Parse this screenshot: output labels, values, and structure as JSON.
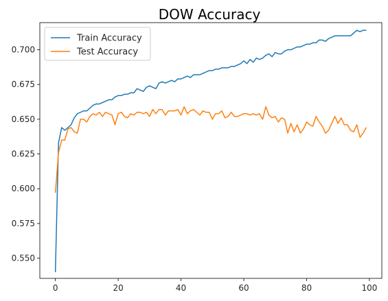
{
  "chart_data": {
    "type": "line",
    "title": "DOW Accuracy",
    "xlabel": "",
    "ylabel": "",
    "xlim": [
      -4.95,
      103.95
    ],
    "ylim": [
      0.5355,
      0.7195
    ],
    "x_ticks": [
      0,
      20,
      40,
      60,
      80,
      100
    ],
    "y_ticks": [
      0.55,
      0.575,
      0.6,
      0.625,
      0.65,
      0.675,
      0.7
    ],
    "y_tick_labels": [
      "0.550",
      "0.575",
      "0.600",
      "0.625",
      "0.650",
      "0.675",
      "0.700"
    ],
    "grid": false,
    "legend_position": "upper-left",
    "x": [
      0,
      1,
      2,
      3,
      4,
      5,
      6,
      7,
      8,
      9,
      10,
      11,
      12,
      13,
      14,
      15,
      16,
      17,
      18,
      19,
      20,
      21,
      22,
      23,
      24,
      25,
      26,
      27,
      28,
      29,
      30,
      31,
      32,
      33,
      34,
      35,
      36,
      37,
      38,
      39,
      40,
      41,
      42,
      43,
      44,
      45,
      46,
      47,
      48,
      49,
      50,
      51,
      52,
      53,
      54,
      55,
      56,
      57,
      58,
      59,
      60,
      61,
      62,
      63,
      64,
      65,
      66,
      67,
      68,
      69,
      70,
      71,
      72,
      73,
      74,
      75,
      76,
      77,
      78,
      79,
      80,
      81,
      82,
      83,
      84,
      85,
      86,
      87,
      88,
      89,
      90,
      91,
      92,
      93,
      94,
      95,
      96,
      97,
      98,
      99
    ],
    "series": [
      {
        "name": "Train Accuracy",
        "color": "#1f77b4",
        "values": [
          0.54,
          0.633,
          0.644,
          0.642,
          0.644,
          0.646,
          0.651,
          0.654,
          0.655,
          0.656,
          0.656,
          0.658,
          0.66,
          0.661,
          0.661,
          0.662,
          0.663,
          0.664,
          0.664,
          0.666,
          0.667,
          0.667,
          0.668,
          0.668,
          0.669,
          0.669,
          0.672,
          0.671,
          0.67,
          0.673,
          0.674,
          0.673,
          0.672,
          0.676,
          0.677,
          0.676,
          0.677,
          0.678,
          0.677,
          0.679,
          0.679,
          0.68,
          0.681,
          0.68,
          0.682,
          0.682,
          0.682,
          0.683,
          0.684,
          0.685,
          0.685,
          0.686,
          0.686,
          0.687,
          0.687,
          0.687,
          0.688,
          0.688,
          0.689,
          0.69,
          0.692,
          0.69,
          0.693,
          0.691,
          0.694,
          0.693,
          0.694,
          0.696,
          0.697,
          0.695,
          0.698,
          0.697,
          0.697,
          0.699,
          0.7,
          0.7,
          0.701,
          0.702,
          0.702,
          0.703,
          0.704,
          0.704,
          0.705,
          0.705,
          0.707,
          0.707,
          0.706,
          0.708,
          0.709,
          0.71,
          0.71,
          0.71,
          0.71,
          0.71,
          0.71,
          0.712,
          0.714,
          0.713,
          0.714,
          0.714
        ]
      },
      {
        "name": "Test Accuracy",
        "color": "#ff7f0e",
        "values": [
          0.597,
          0.626,
          0.635,
          0.635,
          0.643,
          0.644,
          0.641,
          0.64,
          0.65,
          0.65,
          0.648,
          0.652,
          0.654,
          0.653,
          0.655,
          0.652,
          0.655,
          0.654,
          0.653,
          0.646,
          0.654,
          0.655,
          0.652,
          0.651,
          0.654,
          0.653,
          0.655,
          0.655,
          0.654,
          0.655,
          0.652,
          0.657,
          0.654,
          0.657,
          0.657,
          0.653,
          0.656,
          0.656,
          0.656,
          0.657,
          0.653,
          0.659,
          0.654,
          0.656,
          0.657,
          0.655,
          0.653,
          0.656,
          0.655,
          0.655,
          0.65,
          0.654,
          0.654,
          0.656,
          0.651,
          0.652,
          0.655,
          0.652,
          0.652,
          0.653,
          0.654,
          0.654,
          0.653,
          0.654,
          0.653,
          0.654,
          0.65,
          0.659,
          0.653,
          0.651,
          0.652,
          0.648,
          0.651,
          0.65,
          0.64,
          0.647,
          0.641,
          0.646,
          0.64,
          0.643,
          0.648,
          0.646,
          0.645,
          0.652,
          0.648,
          0.645,
          0.64,
          0.642,
          0.647,
          0.652,
          0.647,
          0.651,
          0.646,
          0.646,
          0.642,
          0.641,
          0.646,
          0.637,
          0.64,
          0.644
        ]
      }
    ]
  }
}
